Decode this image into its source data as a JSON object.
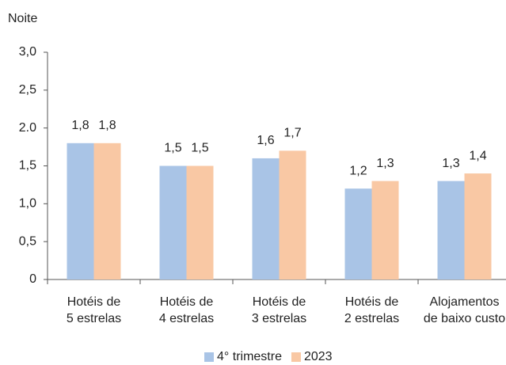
{
  "chart_data": {
    "type": "bar",
    "y_label": "Noite",
    "categories": [
      [
        "Hotéis de",
        "5 estrelas"
      ],
      [
        "Hotéis de",
        "4 estrelas"
      ],
      [
        "Hotéis de",
        "3 estrelas"
      ],
      [
        "Hotéis de",
        "2 estrelas"
      ],
      [
        "Alojamentos",
        "de baixo custo"
      ]
    ],
    "series": [
      {
        "name": "4° trimestre",
        "color": "#a9c4e6",
        "values": [
          1.8,
          1.5,
          1.6,
          1.2,
          1.3
        ],
        "value_labels": [
          "1,8",
          "1,5",
          "1,6",
          "1,2",
          "1,3"
        ]
      },
      {
        "name": "2023",
        "color": "#f9c8a4",
        "values": [
          1.8,
          1.5,
          1.7,
          1.3,
          1.4
        ],
        "value_labels": [
          "1,8",
          "1,5",
          "1,7",
          "1,3",
          "1,4"
        ]
      }
    ],
    "ylim": [
      0,
      3
    ],
    "yticks": [
      0,
      {
        "value": 0.5,
        "label": "0,5"
      },
      {
        "value": 1,
        "label": "1,0"
      },
      {
        "value": 1.5,
        "label": "1,5"
      },
      {
        "value": 2,
        "label": "2.0"
      },
      {
        "value": 2.5,
        "label": "2,5"
      },
      {
        "value": 3,
        "label": "3,0"
      }
    ],
    "legend": "bottom"
  }
}
